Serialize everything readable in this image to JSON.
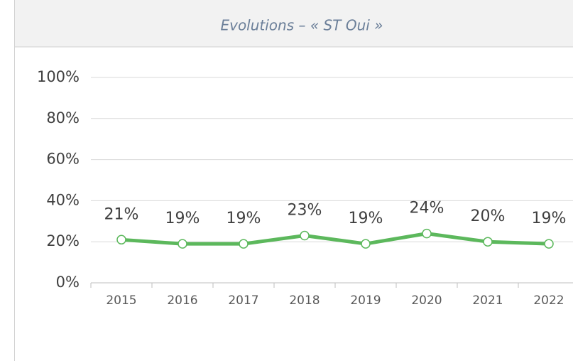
{
  "chart_data": {
    "type": "line",
    "title": "Evolutions – « ST Oui »",
    "categories": [
      "2015",
      "2016",
      "2017",
      "2018",
      "2019",
      "2020",
      "2021",
      "2022"
    ],
    "values": [
      21,
      19,
      19,
      23,
      19,
      24,
      20,
      19
    ],
    "value_labels": [
      "21%",
      "19%",
      "19%",
      "23%",
      "19%",
      "24%",
      "20%",
      "19%"
    ],
    "color": "#5cb85c",
    "ylim": [
      0,
      100
    ],
    "yticks": [
      {
        "value": 0,
        "label": "0%"
      },
      {
        "value": 20,
        "label": "20%"
      },
      {
        "value": 40,
        "label": "40%"
      },
      {
        "value": 60,
        "label": "60%"
      },
      {
        "value": 80,
        "label": "80%"
      },
      {
        "value": 100,
        "label": "100%"
      }
    ],
    "grid": true
  }
}
